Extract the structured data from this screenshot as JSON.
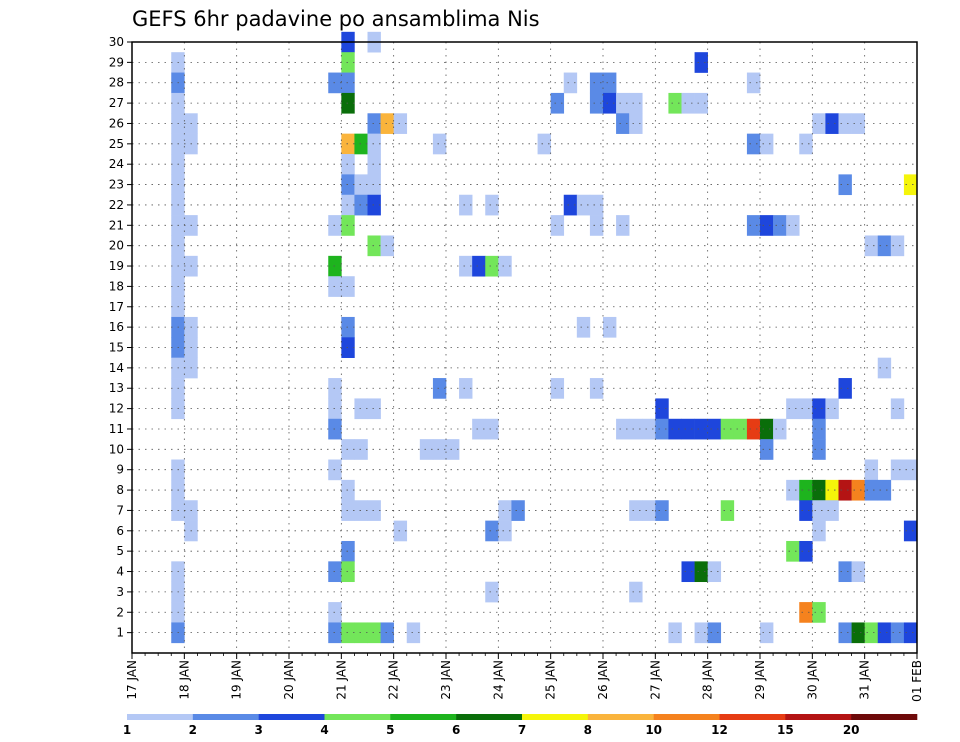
{
  "chart_data": {
    "type": "heatmap",
    "title": "GEFS 6hr padavine po ansamblima Nis",
    "xlabel": "",
    "ylabel": "",
    "x_tick_labels": [
      "17 JAN",
      "18 JAN",
      "19 JAN",
      "20 JAN",
      "21 JAN",
      "22 JAN",
      "23 JAN",
      "24 JAN",
      "25 JAN",
      "26 JAN",
      "27 JAN",
      "28 JAN",
      "29 JAN",
      "30 JAN",
      "31 JAN",
      "01 FEB"
    ],
    "xlim": [
      "17 JAN 00Z",
      "01 FEB 00Z"
    ],
    "x_step": "6hr",
    "y_tick_labels": [
      1,
      2,
      3,
      4,
      5,
      6,
      7,
      8,
      9,
      10,
      11,
      12,
      13,
      14,
      15,
      16,
      17,
      18,
      19,
      20,
      21,
      22,
      23,
      24,
      25,
      26,
      27,
      28,
      29,
      30
    ],
    "ylim": [
      0,
      30
    ],
    "grid": true,
    "colorbar": {
      "labels": [
        "1",
        "2",
        "3",
        "4",
        "5",
        "6",
        "7",
        "8",
        "10",
        "12",
        "15",
        "20"
      ],
      "colors": [
        "#b4c8f5",
        "#5a8ae6",
        "#1e46dc",
        "#73e65a",
        "#1eb41e",
        "#0a6e0a",
        "#f5f50a",
        "#fab43c",
        "#f5821e",
        "#e63c14",
        "#b41414",
        "#6e0a0a"
      ]
    },
    "cell_format": "[time (6hr steps from 17 JAN 00Z), ensemble member, precipitation class 1-12]",
    "cells": [
      [
        4,
        29,
        1
      ],
      [
        4,
        28,
        2
      ],
      [
        4,
        27,
        1
      ],
      [
        4,
        26,
        1
      ],
      [
        4,
        25,
        1
      ],
      [
        4,
        24,
        1
      ],
      [
        4,
        23,
        1
      ],
      [
        4,
        22,
        1
      ],
      [
        4,
        21,
        1
      ],
      [
        4,
        20,
        1
      ],
      [
        4,
        19,
        1
      ],
      [
        4,
        18,
        1
      ],
      [
        4,
        17,
        1
      ],
      [
        4,
        16,
        2
      ],
      [
        4,
        15,
        2
      ],
      [
        4,
        14,
        1
      ],
      [
        4,
        13,
        1
      ],
      [
        4,
        12,
        1
      ],
      [
        4,
        9,
        1
      ],
      [
        4,
        8,
        1
      ],
      [
        4,
        7,
        1
      ],
      [
        4,
        4,
        1
      ],
      [
        4,
        3,
        1
      ],
      [
        4,
        2,
        1
      ],
      [
        4,
        1,
        2
      ],
      [
        5,
        26,
        1
      ],
      [
        5,
        25,
        1
      ],
      [
        5,
        21,
        1
      ],
      [
        5,
        19,
        1
      ],
      [
        5,
        16,
        1
      ],
      [
        5,
        15,
        1
      ],
      [
        5,
        14,
        1
      ],
      [
        5,
        7,
        1
      ],
      [
        5,
        6,
        1
      ],
      [
        16,
        28,
        2
      ],
      [
        16,
        21,
        1
      ],
      [
        16,
        19,
        5
      ],
      [
        16,
        18,
        1
      ],
      [
        16,
        13,
        1
      ],
      [
        16,
        12,
        1
      ],
      [
        16,
        11,
        2
      ],
      [
        16,
        9,
        1
      ],
      [
        16,
        4,
        2
      ],
      [
        16,
        2,
        1
      ],
      [
        16,
        1,
        2
      ],
      [
        17,
        30,
        3
      ],
      [
        17,
        29,
        4
      ],
      [
        17,
        28,
        2
      ],
      [
        17,
        27,
        6
      ],
      [
        17,
        25,
        8
      ],
      [
        17,
        24,
        1
      ],
      [
        17,
        23,
        2
      ],
      [
        17,
        22,
        1
      ],
      [
        17,
        21,
        4
      ],
      [
        17,
        18,
        1
      ],
      [
        17,
        16,
        2
      ],
      [
        17,
        15,
        3
      ],
      [
        17,
        10,
        1
      ],
      [
        17,
        8,
        1
      ],
      [
        17,
        7,
        1
      ],
      [
        17,
        5,
        2
      ],
      [
        17,
        4,
        4
      ],
      [
        17,
        1,
        4
      ],
      [
        18,
        25,
        5
      ],
      [
        18,
        23,
        1
      ],
      [
        18,
        22,
        2
      ],
      [
        18,
        12,
        1
      ],
      [
        18,
        10,
        1
      ],
      [
        18,
        7,
        1
      ],
      [
        18,
        1,
        4
      ],
      [
        19,
        30,
        1
      ],
      [
        19,
        26,
        2
      ],
      [
        19,
        25,
        1
      ],
      [
        19,
        24,
        1
      ],
      [
        19,
        23,
        1
      ],
      [
        19,
        22,
        3
      ],
      [
        19,
        20,
        4
      ],
      [
        19,
        12,
        1
      ],
      [
        19,
        7,
        1
      ],
      [
        19,
        1,
        4
      ],
      [
        20,
        26,
        8
      ],
      [
        20,
        20,
        1
      ],
      [
        20,
        1,
        2
      ],
      [
        21,
        26,
        1
      ],
      [
        21,
        6,
        1
      ],
      [
        22,
        1,
        1
      ],
      [
        23,
        10,
        1
      ],
      [
        24,
        25,
        1
      ],
      [
        24,
        13,
        2
      ],
      [
        24,
        10,
        1
      ],
      [
        25,
        10,
        1
      ],
      [
        26,
        22,
        1
      ],
      [
        26,
        19,
        1
      ],
      [
        26,
        13,
        1
      ],
      [
        27,
        19,
        3
      ],
      [
        27,
        11,
        1
      ],
      [
        28,
        22,
        1
      ],
      [
        28,
        19,
        4
      ],
      [
        28,
        11,
        1
      ],
      [
        28,
        6,
        2
      ],
      [
        28,
        3,
        1
      ],
      [
        29,
        19,
        1
      ],
      [
        29,
        7,
        1
      ],
      [
        29,
        6,
        1
      ],
      [
        30,
        7,
        2
      ],
      [
        32,
        25,
        1
      ],
      [
        33,
        27,
        2
      ],
      [
        33,
        21,
        1
      ],
      [
        33,
        13,
        1
      ],
      [
        34,
        28,
        1
      ],
      [
        34,
        22,
        3
      ],
      [
        35,
        22,
        1
      ],
      [
        35,
        16,
        1
      ],
      [
        36,
        28,
        2
      ],
      [
        36,
        27,
        2
      ],
      [
        36,
        22,
        1
      ],
      [
        36,
        21,
        1
      ],
      [
        36,
        13,
        1
      ],
      [
        37,
        28,
        2
      ],
      [
        37,
        27,
        3
      ],
      [
        37,
        16,
        1
      ],
      [
        38,
        27,
        1
      ],
      [
        38,
        26,
        2
      ],
      [
        38,
        21,
        1
      ],
      [
        38,
        11,
        1
      ],
      [
        39,
        27,
        1
      ],
      [
        39,
        26,
        1
      ],
      [
        39,
        11,
        1
      ],
      [
        39,
        7,
        1
      ],
      [
        39,
        3,
        1
      ],
      [
        40,
        11,
        1
      ],
      [
        40,
        7,
        1
      ],
      [
        41,
        12,
        3
      ],
      [
        41,
        11,
        2
      ],
      [
        41,
        7,
        2
      ],
      [
        42,
        27,
        4
      ],
      [
        42,
        11,
        3
      ],
      [
        42,
        1,
        1
      ],
      [
        43,
        27,
        1
      ],
      [
        43,
        11,
        3
      ],
      [
        43,
        4,
        3
      ],
      [
        44,
        29,
        3
      ],
      [
        44,
        27,
        1
      ],
      [
        44,
        11,
        3
      ],
      [
        44,
        4,
        6
      ],
      [
        44,
        1,
        1
      ],
      [
        45,
        11,
        3
      ],
      [
        45,
        4,
        1
      ],
      [
        45,
        1,
        2
      ],
      [
        46,
        11,
        4
      ],
      [
        46,
        7,
        4
      ],
      [
        47,
        11,
        4
      ],
      [
        48,
        28,
        1
      ],
      [
        48,
        25,
        2
      ],
      [
        48,
        21,
        2
      ],
      [
        48,
        11,
        10
      ],
      [
        49,
        25,
        1
      ],
      [
        49,
        21,
        3
      ],
      [
        49,
        11,
        6
      ],
      [
        49,
        10,
        2
      ],
      [
        49,
        1,
        1
      ],
      [
        50,
        21,
        2
      ],
      [
        50,
        11,
        1
      ],
      [
        51,
        21,
        1
      ],
      [
        51,
        12,
        1
      ],
      [
        51,
        8,
        1
      ],
      [
        51,
        5,
        4
      ],
      [
        52,
        25,
        1
      ],
      [
        52,
        12,
        1
      ],
      [
        52,
        8,
        5
      ],
      [
        52,
        7,
        3
      ],
      [
        52,
        5,
        3
      ],
      [
        52,
        2,
        9
      ],
      [
        53,
        26,
        1
      ],
      [
        53,
        12,
        3
      ],
      [
        53,
        11,
        2
      ],
      [
        53,
        10,
        2
      ],
      [
        53,
        8,
        6
      ],
      [
        53,
        7,
        1
      ],
      [
        53,
        6,
        1
      ],
      [
        53,
        2,
        4
      ],
      [
        54,
        26,
        3
      ],
      [
        54,
        12,
        1
      ],
      [
        54,
        8,
        7
      ],
      [
        54,
        7,
        1
      ],
      [
        55,
        26,
        1
      ],
      [
        55,
        23,
        2
      ],
      [
        55,
        13,
        3
      ],
      [
        55,
        8,
        11
      ],
      [
        55,
        4,
        2
      ],
      [
        55,
        1,
        2
      ],
      [
        56,
        26,
        1
      ],
      [
        56,
        8,
        9
      ],
      [
        56,
        4,
        1
      ],
      [
        56,
        1,
        6
      ],
      [
        57,
        20,
        1
      ],
      [
        57,
        9,
        1
      ],
      [
        57,
        8,
        2
      ],
      [
        57,
        1,
        4
      ],
      [
        58,
        20,
        2
      ],
      [
        58,
        14,
        1
      ],
      [
        58,
        8,
        2
      ],
      [
        58,
        1,
        3
      ],
      [
        59,
        20,
        1
      ],
      [
        59,
        12,
        1
      ],
      [
        59,
        9,
        1
      ],
      [
        59,
        1,
        2
      ],
      [
        60,
        23,
        7
      ],
      [
        60,
        9,
        1
      ],
      [
        60,
        6,
        3
      ],
      [
        60,
        1,
        3
      ]
    ]
  }
}
